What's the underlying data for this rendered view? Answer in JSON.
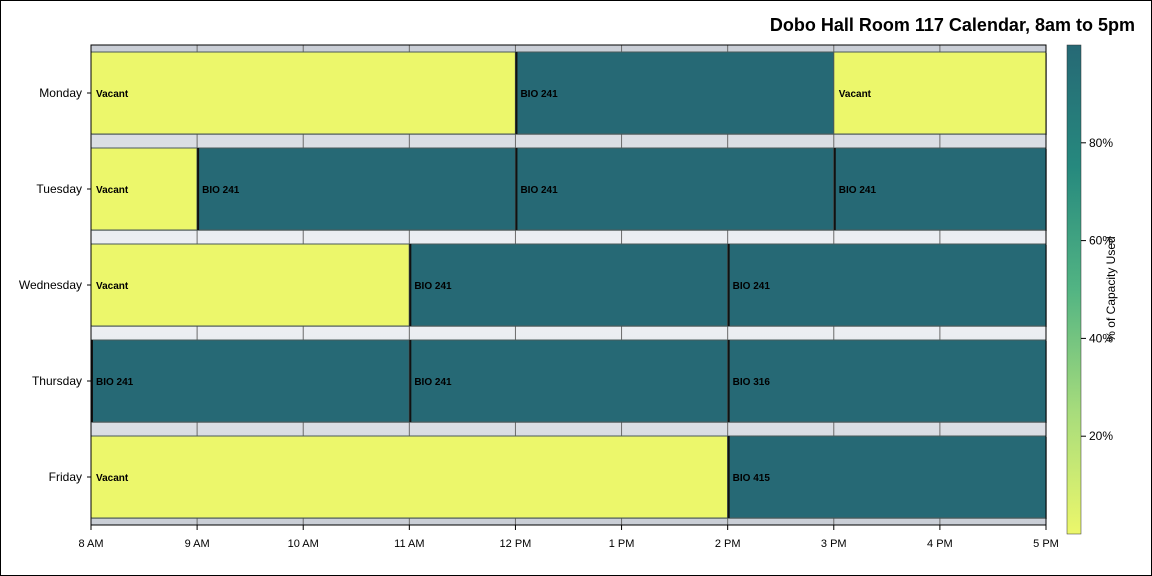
{
  "chart_data": {
    "type": "bar",
    "orientation": "horizontal",
    "title": "Dobo Hall Room 117 Calendar, 8am to 5pm",
    "y_categories": [
      "Monday",
      "Tuesday",
      "Wednesday",
      "Thursday",
      "Friday"
    ],
    "x_ticks": [
      {
        "hour": 8,
        "label": "8 AM"
      },
      {
        "hour": 9,
        "label": "9 AM"
      },
      {
        "hour": 10,
        "label": "10 AM"
      },
      {
        "hour": 11,
        "label": "11 AM"
      },
      {
        "hour": 12,
        "label": "12 PM"
      },
      {
        "hour": 13,
        "label": "1 PM"
      },
      {
        "hour": 14,
        "label": "2 PM"
      },
      {
        "hour": 15,
        "label": "3 PM"
      },
      {
        "hour": 16,
        "label": "4 PM"
      },
      {
        "hour": 17,
        "label": "5 PM"
      }
    ],
    "xlim": [
      8,
      17
    ],
    "grid": true,
    "colorbar": {
      "label": "% of Capacity Used",
      "ticks": [
        {
          "value": 20,
          "label": "20%"
        },
        {
          "value": 40,
          "label": "40%"
        },
        {
          "value": 60,
          "label": "60%"
        },
        {
          "value": 80,
          "label": "80%"
        }
      ],
      "range": [
        0,
        100
      ],
      "colors": [
        "#ecf76b",
        "#a7dc7c",
        "#52b483",
        "#26897e",
        "#266975"
      ]
    },
    "bookings": [
      {
        "day": "Monday",
        "start": 8,
        "end": 12,
        "label": "Vacant",
        "capacity": 0
      },
      {
        "day": "Monday",
        "start": 12,
        "end": 15,
        "label": "BIO 241",
        "capacity": 100
      },
      {
        "day": "Monday",
        "start": 15,
        "end": 17,
        "label": "Vacant",
        "capacity": 0
      },
      {
        "day": "Tuesday",
        "start": 8,
        "end": 9,
        "label": "Vacant",
        "capacity": 0
      },
      {
        "day": "Tuesday",
        "start": 9,
        "end": 12,
        "label": "BIO 241",
        "capacity": 100
      },
      {
        "day": "Tuesday",
        "start": 12,
        "end": 15,
        "label": "BIO 241",
        "capacity": 100
      },
      {
        "day": "Tuesday",
        "start": 15,
        "end": 17,
        "label": "BIO 241",
        "capacity": 100
      },
      {
        "day": "Wednesday",
        "start": 8,
        "end": 11,
        "label": "Vacant",
        "capacity": 0
      },
      {
        "day": "Wednesday",
        "start": 11,
        "end": 14,
        "label": "BIO 241",
        "capacity": 100
      },
      {
        "day": "Wednesday",
        "start": 14,
        "end": 17,
        "label": "BIO 241",
        "capacity": 100
      },
      {
        "day": "Thursday",
        "start": 8,
        "end": 11,
        "label": "BIO 241",
        "capacity": 100
      },
      {
        "day": "Thursday",
        "start": 11,
        "end": 14,
        "label": "BIO 241",
        "capacity": 100
      },
      {
        "day": "Thursday",
        "start": 14,
        "end": 17,
        "label": "BIO 316",
        "capacity": 100
      },
      {
        "day": "Friday",
        "start": 8,
        "end": 14,
        "label": "Vacant",
        "capacity": 0
      },
      {
        "day": "Friday",
        "start": 14,
        "end": 17,
        "label": "BIO 415",
        "capacity": 100
      }
    ]
  }
}
